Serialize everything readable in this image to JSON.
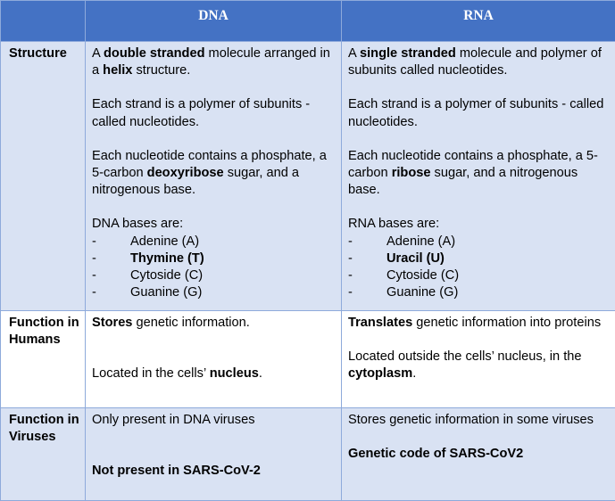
{
  "header": {
    "col_dna": "DNA",
    "col_rna": "RNA"
  },
  "rows": {
    "structure": {
      "label": "Structure",
      "dna": {
        "l1_pre": "A ",
        "l1_bold": "double stranded",
        "l1_post": " molecule arranged in a ",
        "l1_bold2": "helix",
        "l1_post2": " structure.",
        "l2": "Each strand is a polymer of subunits - called nucleotides.",
        "l3_pre": "Each nucleotide contains a phosphate, a 5-carbon ",
        "l3_bold": "deoxyribose",
        "l3_post": " sugar, and a nitrogenous base.",
        "bases_title": "DNA bases are:",
        "bases": [
          "Adenine (A)",
          "Thymine (T)",
          "Cytoside (C)",
          "Guanine (G)"
        ]
      },
      "rna": {
        "l1_pre": "A ",
        "l1_bold": "single stranded",
        "l1_post": " molecule and polymer of subunits called nucleotides.",
        "l2": "Each strand is a polymer of subunits - called nucleotides.",
        "l3_pre": "Each nucleotide contains a phosphate, a 5-carbon ",
        "l3_bold": "ribose",
        "l3_post": " sugar, and a nitrogenous base.",
        "bases_title": "RNA bases are:",
        "bases": [
          "Adenine (A)",
          "Uracil (U)",
          "Cytoside (C)",
          "Guanine (G)"
        ]
      }
    },
    "humans": {
      "label": "Function in Humans",
      "dna": {
        "a_bold": "Stores",
        "a_post": " genetic information.",
        "b_pre": "Located in the cells’ ",
        "b_bold": "nucleus",
        "b_post": "."
      },
      "rna": {
        "a_bold": "Translates",
        "a_post": " genetic information into proteins",
        "b_pre": "Located outside the cells’ nucleus, in the ",
        "b_bold": "cytoplasm",
        "b_post": "."
      }
    },
    "viruses": {
      "label": "Function in Viruses",
      "dna": {
        "a": "Only present in DNA viruses",
        "b_bold": "Not present in SARS-CoV-2"
      },
      "rna": {
        "a": "Stores genetic information in some viruses",
        "b_bold": "Genetic code of SARS-CoV2"
      }
    }
  },
  "colors": {
    "header_bg": "#4472c4",
    "row_shade": "#d9e2f3",
    "border": "#8eaadb"
  }
}
